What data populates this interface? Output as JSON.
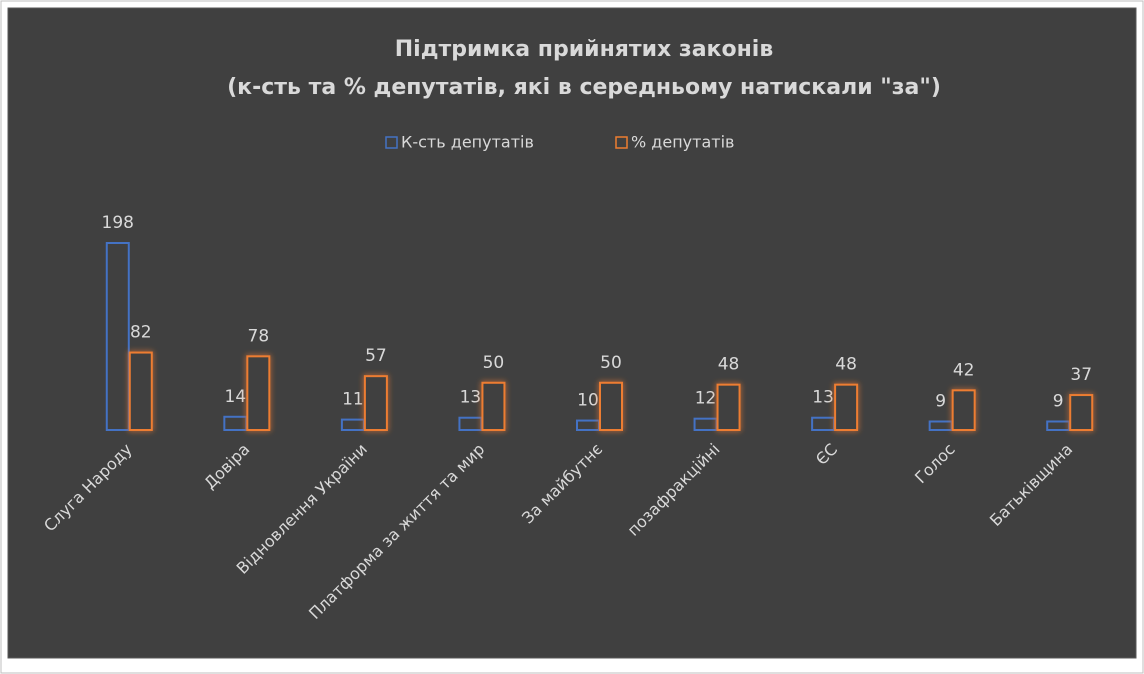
{
  "chart_data": {
    "type": "bar",
    "title": "Підтримка прийнятих законів",
    "subtitle": "(к-сть та % депутатів, які в середньому натискали \"за\")",
    "categories": [
      "Слуга Народу",
      "Довіра",
      "Відновлення України",
      "Платформа за життя та мир",
      "За майбутнє",
      "позафракційні",
      "ЄС",
      "Голос",
      "Батьківщина"
    ],
    "series": [
      {
        "name": "К-сть депутатів",
        "color": "#4472c4",
        "values": [
          198,
          14,
          11,
          13,
          10,
          12,
          13,
          9,
          9
        ]
      },
      {
        "name": "% депутатів",
        "color": "#ed7d31",
        "values": [
          82,
          78,
          57,
          50,
          50,
          48,
          48,
          42,
          37
        ]
      }
    ],
    "legend": "top"
  }
}
